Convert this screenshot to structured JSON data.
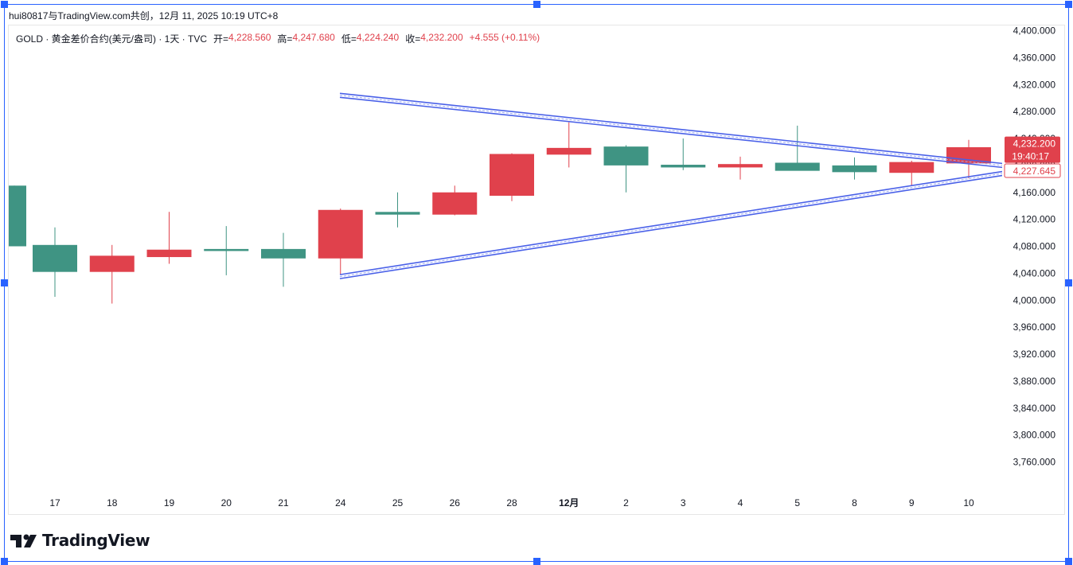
{
  "caption": "hui80817与TradingView.com共创，12月 11, 2025 10:19 UTC+8",
  "legend": {
    "symbol": "GOLD · 黄金差价合约(美元/盎司) · 1天 · TVC",
    "open_label": "开=",
    "open_value": "4,228.560",
    "high_label": "高=",
    "high_value": "4,247.680",
    "low_label": "低=",
    "low_value": "4,224.240",
    "close_label": "收=",
    "close_value": "4,232.200",
    "change": "+4.555 (+0.11%)"
  },
  "branding": {
    "logo_text": "TradingView"
  },
  "price_badges": {
    "last_price": "4,232.200",
    "countdown": "19:40:17",
    "line_price": "4,227.645"
  },
  "colors": {
    "up": "#3f9483",
    "down": "#e0414c",
    "trendline": "#4960e8",
    "frame": "#2962ff"
  },
  "chart_data": {
    "type": "candlestick",
    "ylim": [
      3720,
      4420
    ],
    "ytick_labels": [
      "4,400.000",
      "4,360.000",
      "4,320.000",
      "4,280.000",
      "4,240.000",
      "4,200.000",
      "4,160.000",
      "4,120.000",
      "4,080.000",
      "4,040.000",
      "4,000.000",
      "3,960.000",
      "3,920.000",
      "3,880.000",
      "3,840.000",
      "3,800.000",
      "3,760.000"
    ],
    "yticks": [
      4400,
      4360,
      4320,
      4280,
      4240,
      4200,
      4160,
      4120,
      4080,
      4040,
      4000,
      3960,
      3920,
      3880,
      3840,
      3800,
      3760
    ],
    "x_labels": [
      "17",
      "18",
      "19",
      "20",
      "21",
      "24",
      "25",
      "26",
      "28",
      "12月",
      "2",
      "3",
      "4",
      "5",
      "8",
      "9",
      "10"
    ],
    "candles": [
      {
        "x": "14",
        "open": 4170,
        "high": 4170,
        "low": 4080,
        "close": 4080,
        "dir": "up"
      },
      {
        "x": "17",
        "open": 4082,
        "high": 4108,
        "low": 4005,
        "close": 4042,
        "dir": "up"
      },
      {
        "x": "18",
        "open": 4042,
        "high": 4082,
        "low": 3995,
        "close": 4066,
        "dir": "down"
      },
      {
        "x": "19",
        "open": 4064,
        "high": 4131,
        "low": 4054,
        "close": 4075,
        "dir": "down"
      },
      {
        "x": "20",
        "open": 4076,
        "high": 4110,
        "low": 4037,
        "close": 4073,
        "dir": "up"
      },
      {
        "x": "21",
        "open": 4076,
        "high": 4100,
        "low": 4020,
        "close": 4062,
        "dir": "up"
      },
      {
        "x": "24",
        "open": 4062,
        "high": 4136,
        "low": 4038,
        "close": 4134,
        "dir": "down"
      },
      {
        "x": "25",
        "open": 4131,
        "high": 4160,
        "low": 4108,
        "close": 4127,
        "dir": "up"
      },
      {
        "x": "26",
        "open": 4127,
        "high": 4170,
        "low": 4126,
        "close": 4160,
        "dir": "down"
      },
      {
        "x": "28",
        "open": 4155,
        "high": 4218,
        "low": 4147,
        "close": 4217,
        "dir": "down"
      },
      {
        "x": "12月",
        "open": 4216,
        "high": 4264,
        "low": 4197,
        "close": 4226,
        "dir": "down"
      },
      {
        "x": "2",
        "open": 4228,
        "high": 4230,
        "low": 4160,
        "close": 4200,
        "dir": "up"
      },
      {
        "x": "3",
        "open": 4201,
        "high": 4240,
        "low": 4193,
        "close": 4197,
        "dir": "up"
      },
      {
        "x": "4",
        "open": 4197,
        "high": 4213,
        "low": 4179,
        "close": 4202,
        "dir": "down"
      },
      {
        "x": "5",
        "open": 4204,
        "high": 4259,
        "low": 4193,
        "close": 4192,
        "dir": "up"
      },
      {
        "x": "8",
        "open": 4200,
        "high": 4212,
        "low": 4179,
        "close": 4190,
        "dir": "up"
      },
      {
        "x": "9",
        "open": 4189,
        "high": 4207,
        "low": 4170,
        "close": 4205,
        "dir": "down"
      },
      {
        "x": "10",
        "open": 4203,
        "high": 4238,
        "low": 4181,
        "close": 4227,
        "dir": "down"
      }
    ],
    "trendlines": [
      {
        "name": "",
        "from": {
          "x": "24",
          "y": 4304
        },
        "to": {
          "x": "right-edge",
          "y": 4200
        }
      },
      {
        "name": "",
        "from": {
          "x": "24",
          "y": 4035
        },
        "to": {
          "x": "right-edge",
          "y": 4188
        }
      }
    ],
    "last_price": 4232.2,
    "line_price": 4227.645,
    "grid": false
  }
}
